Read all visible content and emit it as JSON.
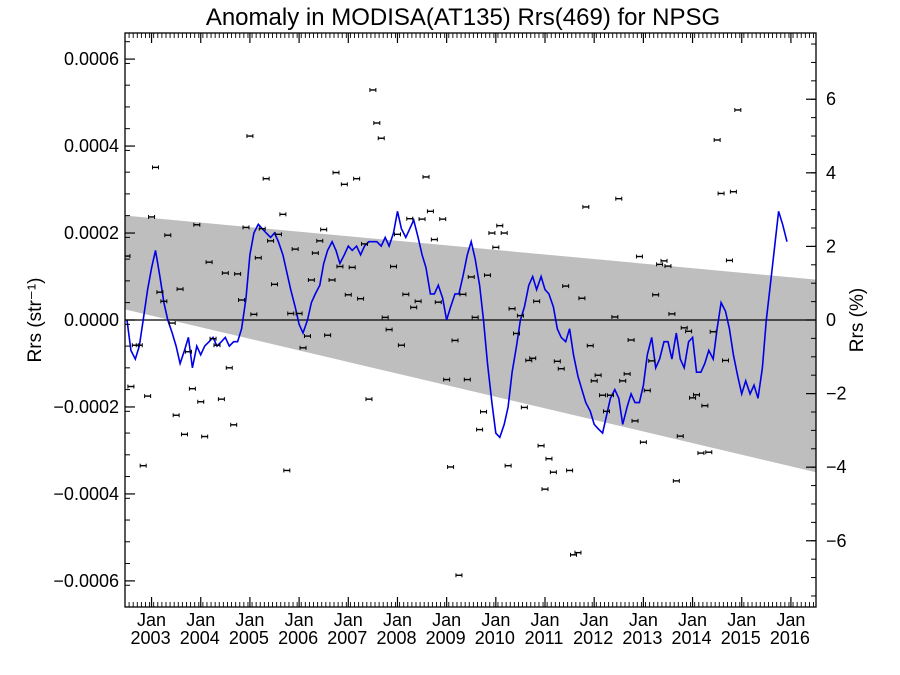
{
  "chart_data": {
    "type": "scatter",
    "title": "Anomaly in MODISA(AT135) Rrs(469) for NPSG",
    "ylabel_left": "Rrs (str⁻¹)",
    "ylabel_right": "Rrs (%)",
    "xlabel": "",
    "x_unit": "decimal year",
    "xlim": [
      2002.5,
      2016.55
    ],
    "ylim_left": [
      -0.00066,
      0.00066
    ],
    "ylim_right": [
      -7.8,
      7.8
    ],
    "x_ticks": [
      {
        "month": "Jan",
        "year": "2003",
        "x": 2003.04
      },
      {
        "month": "Jan",
        "year": "2004",
        "x": 2004.04
      },
      {
        "month": "Jan",
        "year": "2005",
        "x": 2005.04
      },
      {
        "month": "Jan",
        "year": "2006",
        "x": 2006.04
      },
      {
        "month": "Jan",
        "year": "2007",
        "x": 2007.04
      },
      {
        "month": "Jan",
        "year": "2008",
        "x": 2008.04
      },
      {
        "month": "Jan",
        "year": "2009",
        "x": 2009.04
      },
      {
        "month": "Jan",
        "year": "2010",
        "x": 2010.04
      },
      {
        "month": "Jan",
        "year": "2011",
        "x": 2011.04
      },
      {
        "month": "Jan",
        "year": "2012",
        "x": 2012.04
      },
      {
        "month": "Jan",
        "year": "2013",
        "x": 2013.04
      },
      {
        "month": "Jan",
        "year": "2014",
        "x": 2014.04
      },
      {
        "month": "Jan",
        "year": "2015",
        "x": 2015.04
      },
      {
        "month": "Jan",
        "year": "2016",
        "x": 2016.04
      }
    ],
    "y_ticks_left": [
      {
        "value": 0.0006,
        "label": "0.0006"
      },
      {
        "value": 0.0004,
        "label": "0.0004"
      },
      {
        "value": 0.0002,
        "label": "0.0002"
      },
      {
        "value": 0.0,
        "label": "0.0000"
      },
      {
        "value": -0.0002,
        "label": "−0.0002"
      },
      {
        "value": -0.0004,
        "label": "−0.0004"
      },
      {
        "value": -0.0006,
        "label": "−0.0006"
      }
    ],
    "y_ticks_right": [
      {
        "value": 6,
        "label": "6"
      },
      {
        "value": 4,
        "label": "4"
      },
      {
        "value": 2,
        "label": "2"
      },
      {
        "value": 0,
        "label": "0"
      },
      {
        "value": -2,
        "label": "−2"
      },
      {
        "value": -4,
        "label": "−4"
      },
      {
        "value": -6,
        "label": "−6"
      }
    ],
    "zero_line": 0,
    "trend_band": {
      "upper": [
        [
          2002.5,
          0.00024
        ],
        [
          2016.55,
          9.29e-05
        ]
      ],
      "lower": [
        [
          2002.5,
          2.44e-05
        ],
        [
          2016.55,
          -0.00035
        ]
      ]
    },
    "colors": {
      "band": "#bebebe",
      "smooth_line": "#0000e6",
      "points": "#000000",
      "zero_line": "#000000"
    },
    "smoothed_series": [
      [
        2002.54,
        0.0
      ],
      [
        2002.62,
        -7e-05
      ],
      [
        2002.71,
        -9e-05
      ],
      [
        2002.79,
        -6e-05
      ],
      [
        2002.87,
        0.0
      ],
      [
        2002.96,
        7e-05
      ],
      [
        2003.04,
        0.00012
      ],
      [
        2003.12,
        0.00016
      ],
      [
        2003.21,
        0.0001
      ],
      [
        2003.29,
        4e-05
      ],
      [
        2003.37,
        0.0
      ],
      [
        2003.46,
        -3e-05
      ],
      [
        2003.54,
        -6e-05
      ],
      [
        2003.62,
        -0.0001
      ],
      [
        2003.71,
        -7e-05
      ],
      [
        2003.79,
        -4e-05
      ],
      [
        2003.87,
        -0.00011
      ],
      [
        2003.96,
        -6e-05
      ],
      [
        2004.04,
        -8e-05
      ],
      [
        2004.12,
        -6e-05
      ],
      [
        2004.21,
        -5e-05
      ],
      [
        2004.29,
        -4e-05
      ],
      [
        2004.37,
        -6e-05
      ],
      [
        2004.46,
        -5e-05
      ],
      [
        2004.54,
        -4e-05
      ],
      [
        2004.62,
        -6e-05
      ],
      [
        2004.71,
        -5e-05
      ],
      [
        2004.79,
        -5e-05
      ],
      [
        2004.87,
        -2e-05
      ],
      [
        2004.96,
        5e-05
      ],
      [
        2005.04,
        0.00015
      ],
      [
        2005.12,
        0.0002
      ],
      [
        2005.21,
        0.00022
      ],
      [
        2005.29,
        0.00021
      ],
      [
        2005.37,
        0.0002
      ],
      [
        2005.46,
        0.00019
      ],
      [
        2005.54,
        0.0002
      ],
      [
        2005.62,
        0.00018
      ],
      [
        2005.71,
        0.00015
      ],
      [
        2005.79,
        0.00011
      ],
      [
        2005.87,
        7e-05
      ],
      [
        2005.96,
        3e-05
      ],
      [
        2006.04,
        -1e-05
      ],
      [
        2006.12,
        -3e-05
      ],
      [
        2006.21,
        0.0
      ],
      [
        2006.29,
        4e-05
      ],
      [
        2006.37,
        6e-05
      ],
      [
        2006.46,
        8e-05
      ],
      [
        2006.54,
        0.00013
      ],
      [
        2006.62,
        0.00016
      ],
      [
        2006.71,
        0.00018
      ],
      [
        2006.79,
        0.00016
      ],
      [
        2006.87,
        0.00013
      ],
      [
        2006.96,
        0.00015
      ],
      [
        2007.04,
        0.00017
      ],
      [
        2007.12,
        0.00016
      ],
      [
        2007.21,
        0.00017
      ],
      [
        2007.29,
        0.00015
      ],
      [
        2007.37,
        0.00017
      ],
      [
        2007.46,
        0.00018
      ],
      [
        2007.54,
        0.00018
      ],
      [
        2007.62,
        0.00018
      ],
      [
        2007.71,
        0.00017
      ],
      [
        2007.79,
        0.00019
      ],
      [
        2007.87,
        0.00017
      ],
      [
        2007.96,
        0.0002
      ],
      [
        2008.04,
        0.00025
      ],
      [
        2008.12,
        0.00021
      ],
      [
        2008.21,
        0.00019
      ],
      [
        2008.29,
        0.00021
      ],
      [
        2008.37,
        0.00023
      ],
      [
        2008.46,
        0.00019
      ],
      [
        2008.54,
        0.00015
      ],
      [
        2008.62,
        0.00012
      ],
      [
        2008.71,
        6e-05
      ],
      [
        2008.79,
        6e-05
      ],
      [
        2008.87,
        8e-05
      ],
      [
        2008.96,
        5e-05
      ],
      [
        2009.04,
        0.0
      ],
      [
        2009.12,
        3e-05
      ],
      [
        2009.21,
        6e-05
      ],
      [
        2009.29,
        6e-05
      ],
      [
        2009.37,
        0.0001
      ],
      [
        2009.46,
        0.00015
      ],
      [
        2009.54,
        0.00018
      ],
      [
        2009.62,
        0.00014
      ],
      [
        2009.71,
        8e-05
      ],
      [
        2009.79,
        0.0
      ],
      [
        2009.87,
        -0.0001
      ],
      [
        2009.96,
        -0.00019
      ],
      [
        2010.04,
        -0.00026
      ],
      [
        2010.12,
        -0.00027
      ],
      [
        2010.21,
        -0.00024
      ],
      [
        2010.29,
        -0.0002
      ],
      [
        2010.37,
        -0.00012
      ],
      [
        2010.46,
        -6e-05
      ],
      [
        2010.54,
        0.0
      ],
      [
        2010.62,
        3e-05
      ],
      [
        2010.71,
        8e-05
      ],
      [
        2010.79,
        0.0001
      ],
      [
        2010.87,
        7e-05
      ],
      [
        2010.96,
        0.0001
      ],
      [
        2011.04,
        7e-05
      ],
      [
        2011.12,
        6e-05
      ],
      [
        2011.21,
        3e-05
      ],
      [
        2011.29,
        -2e-05
      ],
      [
        2011.37,
        -4e-05
      ],
      [
        2011.46,
        -5e-05
      ],
      [
        2011.54,
        -2e-05
      ],
      [
        2011.62,
        -8e-05
      ],
      [
        2011.71,
        -0.00013
      ],
      [
        2011.79,
        -0.00016
      ],
      [
        2011.87,
        -0.00019
      ],
      [
        2011.96,
        -0.00021
      ],
      [
        2012.04,
        -0.00024
      ],
      [
        2012.12,
        -0.00025
      ],
      [
        2012.21,
        -0.00026
      ],
      [
        2012.29,
        -0.00022
      ],
      [
        2012.37,
        -0.00018
      ],
      [
        2012.46,
        -0.00016
      ],
      [
        2012.54,
        -0.00018
      ],
      [
        2012.62,
        -0.00024
      ],
      [
        2012.71,
        -0.0002
      ],
      [
        2012.79,
        -0.00017
      ],
      [
        2012.87,
        -0.00019
      ],
      [
        2012.96,
        -0.00019
      ],
      [
        2013.04,
        -0.00015
      ],
      [
        2013.12,
        -8e-05
      ],
      [
        2013.21,
        -4e-05
      ],
      [
        2013.29,
        -0.00011
      ],
      [
        2013.37,
        -9e-05
      ],
      [
        2013.46,
        -5e-05
      ],
      [
        2013.54,
        -5e-05
      ],
      [
        2013.62,
        -9e-05
      ],
      [
        2013.71,
        -3e-05
      ],
      [
        2013.79,
        -9e-05
      ],
      [
        2013.87,
        -0.00011
      ],
      [
        2013.96,
        -5e-05
      ],
      [
        2014.04,
        -4e-05
      ],
      [
        2014.12,
        -0.00012
      ],
      [
        2014.21,
        -0.00012
      ],
      [
        2014.29,
        -0.0001
      ],
      [
        2014.37,
        -7e-05
      ],
      [
        2014.46,
        -9e-05
      ],
      [
        2014.54,
        -2e-05
      ],
      [
        2014.62,
        4e-05
      ],
      [
        2014.71,
        2e-05
      ],
      [
        2014.79,
        -2e-05
      ],
      [
        2014.87,
        -8e-05
      ],
      [
        2014.96,
        -0.00013
      ],
      [
        2015.04,
        -0.00017
      ],
      [
        2015.12,
        -0.00014
      ],
      [
        2015.21,
        -0.00017
      ],
      [
        2015.29,
        -0.00015
      ],
      [
        2015.37,
        -0.00018
      ],
      [
        2015.46,
        -0.00011
      ],
      [
        2015.54,
        0.0
      ],
      [
        2015.62,
        8e-05
      ],
      [
        2015.71,
        0.00017
      ],
      [
        2015.79,
        0.00025
      ],
      [
        2015.87,
        0.00022
      ],
      [
        2015.96,
        0.00018
      ]
    ],
    "monthly_points": [
      [
        2002.54,
        0.000147
      ],
      [
        2002.62,
        -0.000153
      ],
      [
        2002.71,
        -5.8e-05
      ],
      [
        2002.79,
        -5.8e-05
      ],
      [
        2002.87,
        -0.000335
      ],
      [
        2002.96,
        -0.000175
      ],
      [
        2003.04,
        0.000237
      ],
      [
        2003.12,
        0.000351
      ],
      [
        2003.21,
        6.4e-05
      ],
      [
        2003.29,
        4.3e-05
      ],
      [
        2003.37,
        0.000195
      ],
      [
        2003.46,
        -7e-06
      ],
      [
        2003.54,
        -0.000219
      ],
      [
        2003.62,
        7.1e-05
      ],
      [
        2003.71,
        -0.000263
      ],
      [
        2003.79,
        -7.3e-05
      ],
      [
        2003.87,
        -0.000158
      ],
      [
        2003.96,
        0.000219
      ],
      [
        2004.04,
        -0.000188
      ],
      [
        2004.12,
        -0.000268
      ],
      [
        2004.21,
        0.000133
      ],
      [
        2004.29,
        -4.3e-05
      ],
      [
        2004.37,
        -5.8e-05
      ],
      [
        2004.46,
        -0.000182
      ],
      [
        2004.54,
        0.000108
      ],
      [
        2004.62,
        -0.00011
      ],
      [
        2004.71,
        -0.000241
      ],
      [
        2004.79,
        0.000106
      ],
      [
        2004.87,
        4.6e-05
      ],
      [
        2004.96,
        0.000213
      ],
      [
        2005.04,
        0.000423
      ],
      [
        2005.12,
        1.3e-05
      ],
      [
        2005.21,
        0.000143
      ],
      [
        2005.29,
        0.00021
      ],
      [
        2005.37,
        0.000325
      ],
      [
        2005.46,
        0.000182
      ],
      [
        2005.54,
        8.2e-05
      ],
      [
        2005.62,
        0.000197
      ],
      [
        2005.71,
        0.000243
      ],
      [
        2005.79,
        -0.000346
      ],
      [
        2005.87,
        1.5e-05
      ],
      [
        2005.96,
        0.000163
      ],
      [
        2006.04,
        1.5e-05
      ],
      [
        2006.12,
        -6.4e-05
      ],
      [
        2006.21,
        -3.7e-05
      ],
      [
        2006.29,
        9.2e-05
      ],
      [
        2006.37,
        0.000154
      ],
      [
        2006.46,
        0.000182
      ],
      [
        2006.54,
        0.000208
      ],
      [
        2006.62,
        -3.5e-05
      ],
      [
        2006.71,
        9.2e-05
      ],
      [
        2006.79,
        0.000339
      ],
      [
        2006.87,
        0.000123
      ],
      [
        2006.96,
        0.000312
      ],
      [
        2007.04,
        5.8e-05
      ],
      [
        2007.12,
        0.000121
      ],
      [
        2007.21,
        0.000325
      ],
      [
        2007.29,
        4.9e-05
      ],
      [
        2007.37,
        0.000175
      ],
      [
        2007.46,
        -0.000182
      ],
      [
        2007.54,
        0.000529
      ],
      [
        2007.62,
        0.000453
      ],
      [
        2007.71,
        0.000418
      ],
      [
        2007.79,
        6e-06
      ],
      [
        2007.87,
        -2.2e-05
      ],
      [
        2007.96,
        0.000123
      ],
      [
        2008.04,
        0.000197
      ],
      [
        2008.12,
        -5.8e-05
      ],
      [
        2008.21,
        5.9e-05
      ],
      [
        2008.29,
        0.000233
      ],
      [
        2008.37,
        2.9e-05
      ],
      [
        2008.46,
        4.3e-05
      ],
      [
        2008.54,
        0.000232
      ],
      [
        2008.62,
        0.000329
      ],
      [
        2008.71,
        0.00025
      ],
      [
        2008.79,
        0.000185
      ],
      [
        2008.87,
        4.1e-05
      ],
      [
        2008.96,
        0.000232
      ],
      [
        2009.04,
        -0.000137
      ],
      [
        2009.12,
        -0.000338
      ],
      [
        2009.21,
        -4.7e-05
      ],
      [
        2009.29,
        -0.000587
      ],
      [
        2009.37,
        5.9e-05
      ],
      [
        2009.46,
        -0.000137
      ],
      [
        2009.54,
        9.9e-05
      ],
      [
        2009.62,
        6e-06
      ],
      [
        2009.71,
        -0.000252
      ],
      [
        2009.79,
        -0.000211
      ],
      [
        2009.87,
        0.000103
      ],
      [
        2009.96,
        0.0002
      ],
      [
        2010.04,
        0.000167
      ],
      [
        2010.12,
        0.000217
      ],
      [
        2010.21,
        0.0002
      ],
      [
        2010.29,
        -0.000335
      ],
      [
        2010.37,
        2.6e-05
      ],
      [
        2010.46,
        -3.1e-05
      ],
      [
        2010.54,
        1e-05
      ],
      [
        2010.62,
        -0.000201
      ],
      [
        2010.71,
        -9.3e-05
      ],
      [
        2010.79,
        -8.8e-05
      ],
      [
        2010.87,
        4.3e-05
      ],
      [
        2010.96,
        -0.000289
      ],
      [
        2011.04,
        -0.000389
      ],
      [
        2011.12,
        -0.000319
      ],
      [
        2011.21,
        -0.00035
      ],
      [
        2011.29,
        -9.5e-05
      ],
      [
        2011.37,
        -0.000112
      ],
      [
        2011.46,
        7.8e-05
      ],
      [
        2011.54,
        -0.000346
      ],
      [
        2011.62,
        -0.00054
      ],
      [
        2011.71,
        -0.000535
      ],
      [
        2011.79,
        5e-05
      ],
      [
        2011.87,
        0.00026
      ],
      [
        2011.96,
        -5.9e-05
      ],
      [
        2012.04,
        -0.00014
      ],
      [
        2012.12,
        -0.000127
      ],
      [
        2012.21,
        -0.000173
      ],
      [
        2012.29,
        -0.00021
      ],
      [
        2012.37,
        -0.000173
      ],
      [
        2012.46,
        7e-06
      ],
      [
        2012.54,
        0.000279
      ],
      [
        2012.62,
        -0.00014
      ],
      [
        2012.71,
        -0.000124
      ],
      [
        2012.79,
        -4.6e-05
      ],
      [
        2012.87,
        -0.000232
      ],
      [
        2012.96,
        0.000146
      ],
      [
        2013.04,
        -0.000281
      ],
      [
        2013.12,
        -0.000162
      ],
      [
        2013.21,
        -9.4e-05
      ],
      [
        2013.29,
        5.8e-05
      ],
      [
        2013.37,
        0.000128
      ],
      [
        2013.46,
        0.000136
      ],
      [
        2013.54,
        0.000124
      ],
      [
        2013.62,
        1.4e-05
      ],
      [
        2013.71,
        -0.00037
      ],
      [
        2013.79,
        -0.000267
      ],
      [
        2013.87,
        -1.8e-05
      ],
      [
        2013.96,
        -2.6e-05
      ],
      [
        2014.04,
        -0.000179
      ],
      [
        2014.12,
        -0.000172
      ],
      [
        2014.21,
        -0.000306
      ],
      [
        2014.29,
        -0.000197
      ],
      [
        2014.37,
        -0.000304
      ],
      [
        2014.46,
        -2.7e-05
      ],
      [
        2014.54,
        0.000414
      ],
      [
        2014.62,
        0.000291
      ],
      [
        2014.71,
        -9.3e-05
      ],
      [
        2014.79,
        0.000137
      ],
      [
        2014.87,
        0.000295
      ],
      [
        2014.96,
        0.000483
      ]
    ]
  }
}
